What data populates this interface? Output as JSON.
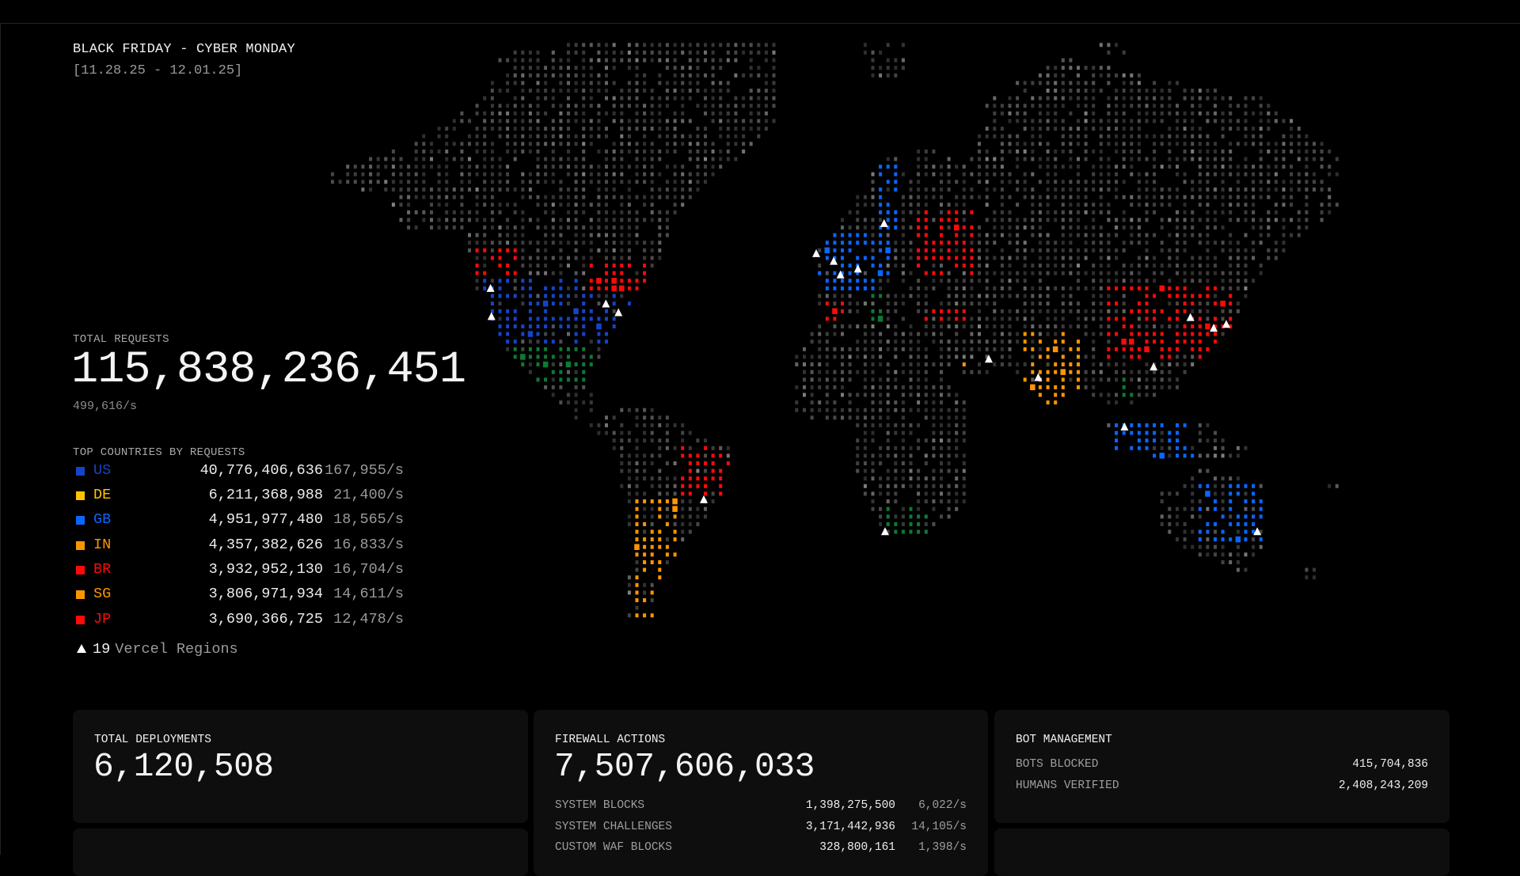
{
  "header": {
    "title": "BLACK FRIDAY - CYBER MONDAY",
    "dates": "[11.28.25 - 12.01.25]"
  },
  "total_requests": {
    "label": "TOTAL REQUESTS",
    "value": "115,838,236,451",
    "rate": "499,616/s"
  },
  "top_countries": {
    "label": "TOP COUNTRIES BY REQUESTS",
    "items": [
      {
        "code": "US",
        "value": "40,776,406,636",
        "rate": "167,955/s",
        "color": "#1444c8"
      },
      {
        "code": "DE",
        "value": "6,211,368,988",
        "rate": "21,400/s",
        "color": "#ffc400"
      },
      {
        "code": "GB",
        "value": "4,951,977,480",
        "rate": "18,565/s",
        "color": "#0a66ff"
      },
      {
        "code": "IN",
        "value": "4,357,382,626",
        "rate": "16,833/s",
        "color": "#ff9600"
      },
      {
        "code": "BR",
        "value": "3,932,952,130",
        "rate": "16,704/s",
        "color": "#ff0a0a"
      },
      {
        "code": "SG",
        "value": "3,806,971,934",
        "rate": "14,611/s",
        "color": "#ff9600"
      },
      {
        "code": "JP",
        "value": "3,690,366,725",
        "rate": "12,478/s",
        "color": "#ff0a0a"
      }
    ]
  },
  "regions": {
    "count": "19",
    "label": "Vercel Regions",
    "icon": "triangle-icon"
  },
  "map": {
    "other_country_color": "#0d7a35",
    "land_dot_color": "#3c3c3c"
  },
  "cards": {
    "deployments": {
      "title": "TOTAL DEPLOYMENTS",
      "value": "6,120,508"
    },
    "firewall": {
      "title": "FIREWALL ACTIONS",
      "value": "7,507,606,033",
      "rows": [
        {
          "label": "SYSTEM BLOCKS",
          "value": "1,398,275,500",
          "rate": "6,022/s"
        },
        {
          "label": "SYSTEM CHALLENGES",
          "value": "3,171,442,936",
          "rate": "14,105/s"
        },
        {
          "label": "CUSTOM WAF BLOCKS",
          "value": "328,800,161",
          "rate": "1,398/s"
        }
      ]
    },
    "bots": {
      "title": "BOT MANAGEMENT",
      "rows": [
        {
          "label": "BOTS BLOCKED",
          "value": "415,704,836"
        },
        {
          "label": "HUMANS VERIFIED",
          "value": "2,408,243,209"
        }
      ]
    }
  }
}
